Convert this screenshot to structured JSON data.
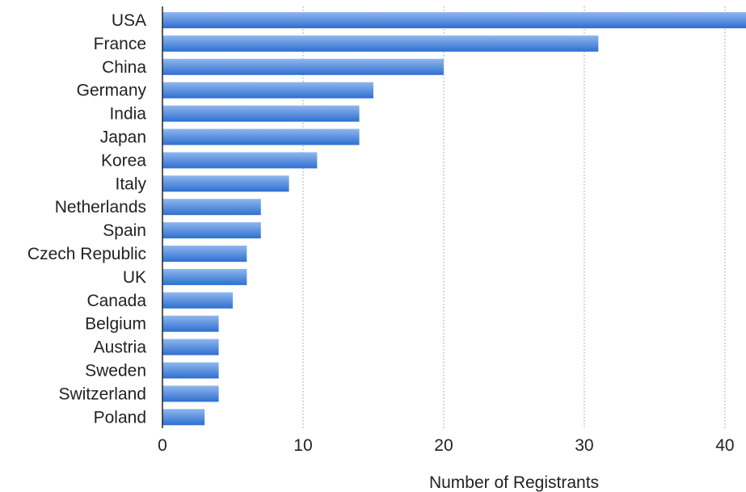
{
  "chart_data": {
    "type": "bar",
    "orientation": "horizontal",
    "title": "",
    "xlabel": "Number of Registrants",
    "ylabel": "",
    "categories": [
      "USA",
      "France",
      "China",
      "Germany",
      "India",
      "Japan",
      "Korea",
      "Italy",
      "Netherlands",
      "Spain",
      "Czech Republic",
      "UK",
      "Canada",
      "Belgium",
      "Austria",
      "Sweden",
      "Switzerland",
      "Poland"
    ],
    "values": [
      42,
      31,
      20,
      15,
      14,
      14,
      11,
      9,
      7,
      7,
      6,
      6,
      5,
      4,
      4,
      4,
      4,
      3
    ],
    "xlim": [
      0,
      41.5
    ],
    "xticks": [
      "0",
      "10",
      "20",
      "30",
      "40"
    ],
    "grid": "vertical-dotted",
    "legend": "none",
    "colors": {
      "bar_top": "#8fb7ee",
      "bar_bottom": "#2f6fd0",
      "grid": "#9a9a9a",
      "axis": "#222222"
    }
  }
}
